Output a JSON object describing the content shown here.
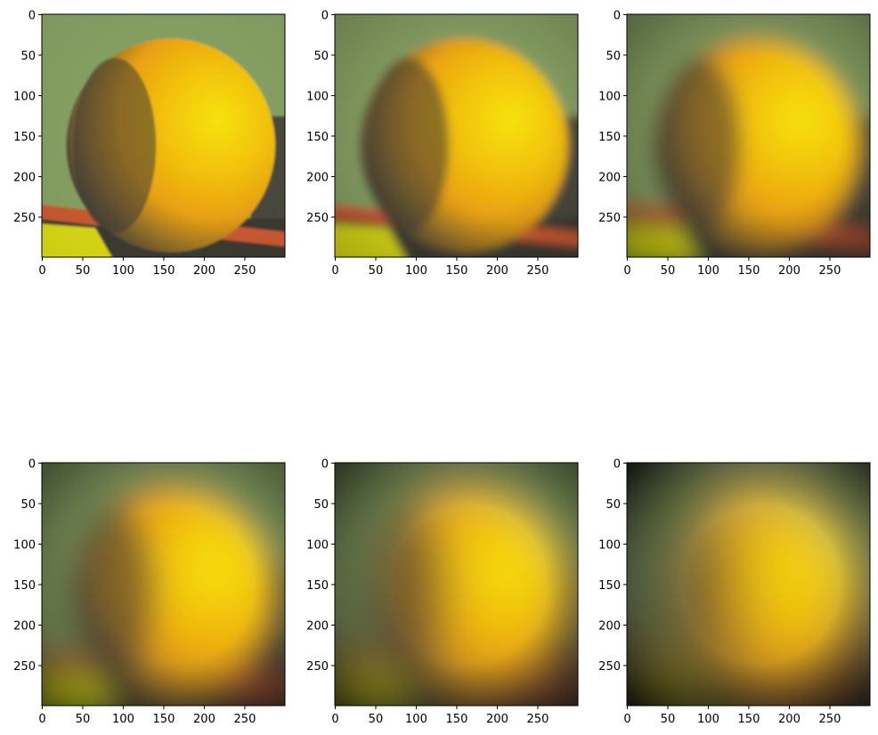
{
  "figure": {
    "panels": [
      {
        "image": "orange-photo-blur-level-1",
        "blur_level": 1,
        "x_ticks": [
          "0",
          "50",
          "100",
          "150",
          "200",
          "250"
        ],
        "y_ticks": [
          "0",
          "50",
          "100",
          "150",
          "200",
          "250"
        ]
      },
      {
        "image": "orange-photo-blur-level-2",
        "blur_level": 2,
        "x_ticks": [
          "0",
          "50",
          "100",
          "150",
          "200",
          "250"
        ],
        "y_ticks": [
          "0",
          "50",
          "100",
          "150",
          "200",
          "250"
        ]
      },
      {
        "image": "orange-photo-blur-level-3",
        "blur_level": 3,
        "x_ticks": [
          "0",
          "50",
          "100",
          "150",
          "200",
          "250"
        ],
        "y_ticks": [
          "0",
          "50",
          "100",
          "150",
          "200",
          "250"
        ]
      },
      {
        "image": "orange-photo-blur-level-4",
        "blur_level": 4,
        "x_ticks": [
          "0",
          "50",
          "100",
          "150",
          "200",
          "250"
        ],
        "y_ticks": [
          "0",
          "50",
          "100",
          "150",
          "200",
          "250"
        ]
      },
      {
        "image": "orange-photo-blur-level-5",
        "blur_level": 5,
        "x_ticks": [
          "0",
          "50",
          "100",
          "150",
          "200",
          "250"
        ],
        "y_ticks": [
          "0",
          "50",
          "100",
          "150",
          "200",
          "250"
        ]
      },
      {
        "image": "orange-photo-blur-level-6",
        "blur_level": 6,
        "x_ticks": [
          "0",
          "50",
          "100",
          "150",
          "200",
          "250"
        ],
        "y_ticks": [
          "0",
          "50",
          "100",
          "150",
          "200",
          "250"
        ]
      }
    ],
    "axis_extent": [
      0,
      299
    ],
    "colors": {
      "background_green": "#86a064",
      "orange_bright": "#f6e20a",
      "orange_mid": "#e8a012",
      "orange_shadow": "#4a4438",
      "table_dark": "#3a3a30",
      "stripe_red": "#c85a30",
      "yellow_patch": "#d8d818"
    }
  }
}
